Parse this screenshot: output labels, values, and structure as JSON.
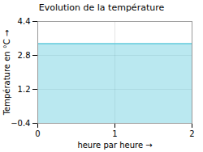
{
  "chart_data": {
    "type": "area",
    "title": "Evolution de la température",
    "xlabel": "heure par heure",
    "ylabel": "Température en °C",
    "x": [
      0,
      2
    ],
    "values": [
      3.35,
      3.35
    ],
    "color": "#66ccdd",
    "xlim": [
      0,
      2
    ],
    "ylim": [
      -0.4,
      4.4
    ],
    "xticks": [
      0,
      1,
      2
    ],
    "yticks": [
      -0.4,
      1.2,
      2.8,
      4.4
    ],
    "grid": true
  }
}
